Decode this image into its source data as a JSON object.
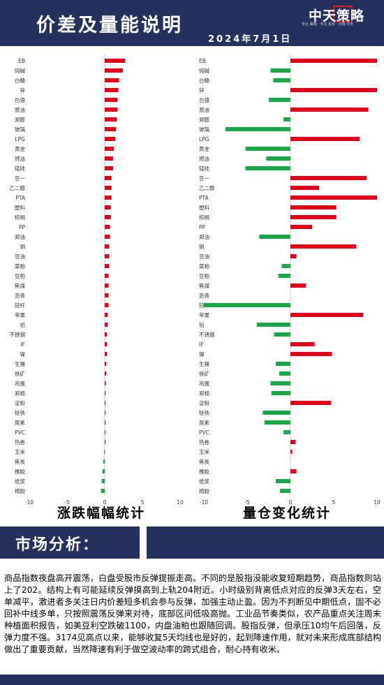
{
  "header": {
    "title": "价差及量能说明",
    "date": "2024年7月1日",
    "logo": "中天策略",
    "logo_sub": "专业 策略 · 专注 投资 · 价值 中天"
  },
  "colors": {
    "up": "#e0001b",
    "down": "#1aa84a",
    "navy": "#24305e"
  },
  "chart_data": [
    {
      "type": "bar",
      "title": "涨跌幅幅统计",
      "orientation": "horizontal",
      "xlim": [
        -10,
        10
      ],
      "xticks": [
        "-10",
        "-5",
        "0",
        "5",
        "10"
      ],
      "categories": [
        "EB",
        "纯碱",
        "白糖",
        "锌",
        "白银",
        "原油",
        "郑醇",
        "玻璃",
        "LPG",
        "黄金",
        "燃油",
        "锰硅",
        "豆一",
        "乙二醇",
        "PTA",
        "塑料",
        "棕榈",
        "PP",
        "郑油",
        "铜",
        "豆油",
        "菜粕",
        "豆粕",
        "焦煤",
        "沥青",
        "短纤",
        "苹果",
        "铝",
        "不锈钢",
        "IF",
        "镍",
        "生猪",
        "铁矿",
        "鸡蛋",
        "郑棉",
        "淀粉",
        "硅铁",
        "尿素",
        "PVC",
        "热卷",
        "玉米",
        "焦炭",
        "橡胶",
        "纸浆",
        "棉胶"
      ],
      "values": [
        2.7,
        2.4,
        1.9,
        1.8,
        1.7,
        1.7,
        1.6,
        1.5,
        1.4,
        1.2,
        1.1,
        1.1,
        0.9,
        0.9,
        0.9,
        0.8,
        0.8,
        0.7,
        0.7,
        0.6,
        0.6,
        0.6,
        0.5,
        0.5,
        0.5,
        0.5,
        0.4,
        0.4,
        0.3,
        0.3,
        0.3,
        0.2,
        0.2,
        0.15,
        0.1,
        0.1,
        0.05,
        0.05,
        0.02,
        0.02,
        -0.1,
        -0.2,
        -0.3,
        -0.4,
        -0.5
      ]
    },
    {
      "type": "bar",
      "title": "量仓变化统计",
      "orientation": "horizontal",
      "xlim": [
        -10,
        10
      ],
      "xticks": [
        "-10",
        "-5",
        "0",
        "5",
        "10"
      ],
      "categories": [
        "EB",
        "纯碱",
        "白糖",
        "锌",
        "白银",
        "原油",
        "郑醇",
        "玻璃",
        "LPG",
        "黄金",
        "燃油",
        "锰硅",
        "豆一",
        "乙二醇",
        "PTA",
        "塑料",
        "棕榈",
        "PP",
        "郑油",
        "铜",
        "豆油",
        "菜粕",
        "豆粕",
        "焦煤",
        "沥青",
        "短纤",
        "苹果",
        "铝",
        "不锈钢",
        "IF",
        "镍",
        "生猪",
        "铁矿",
        "鸡蛋",
        "郑棉",
        "淀粉",
        "硅铁",
        "尿素",
        "PVC",
        "热卷",
        "玉米",
        "焦炭",
        "橡胶",
        "纸浆",
        "棉胶"
      ],
      "values": [
        10,
        -2.3,
        -2,
        10,
        -2.5,
        9,
        -0.8,
        -7.5,
        8,
        -5.2,
        -2.8,
        -5.2,
        8.8,
        3.3,
        10,
        5.3,
        5.3,
        2.5,
        -3.6,
        7.6,
        0.7,
        -1,
        -1.4,
        1.8,
        0,
        -10,
        8.4,
        -3.9,
        -1.9,
        2.8,
        4.8,
        -1.7,
        -1.3,
        -2.3,
        -2.2,
        4.7,
        -3.2,
        -3,
        -0.8,
        0.6,
        0.2,
        0,
        0.7,
        -1.7,
        -1.2
      ]
    }
  ],
  "analysis": {
    "section_title": "市场分析：",
    "text": "商品指数夜盘高开震荡，白盘受股市反弹提振走高。不同的是股指没能收复短期趋势，商品指数则站上了202。结构上有可能延续反弹摸高到上轨204附近。小时级别背离低点对应的反弹3天左右，空单减平，激进者多关注日内价差短多机会参与反弹，加强主动止盈。因为不判断见中期低点，固不必回补中线多单，只按照震荡反弹来对待，底部区间低吸高抛。工业品节奏类似，农产品重点关注周末种植面积报告，如美豆利空跌破1100，内盘油粕也跟随回调。股指反弹，但承压10均午后回落，反弹力度不强。3174见高点以来，能够收复5天均线也是好的，起到降速作用，就对未来形成底部结构做出了重要贡献，当然降速有利于做空波动率的跨式组合，耐心持有收米。"
  }
}
